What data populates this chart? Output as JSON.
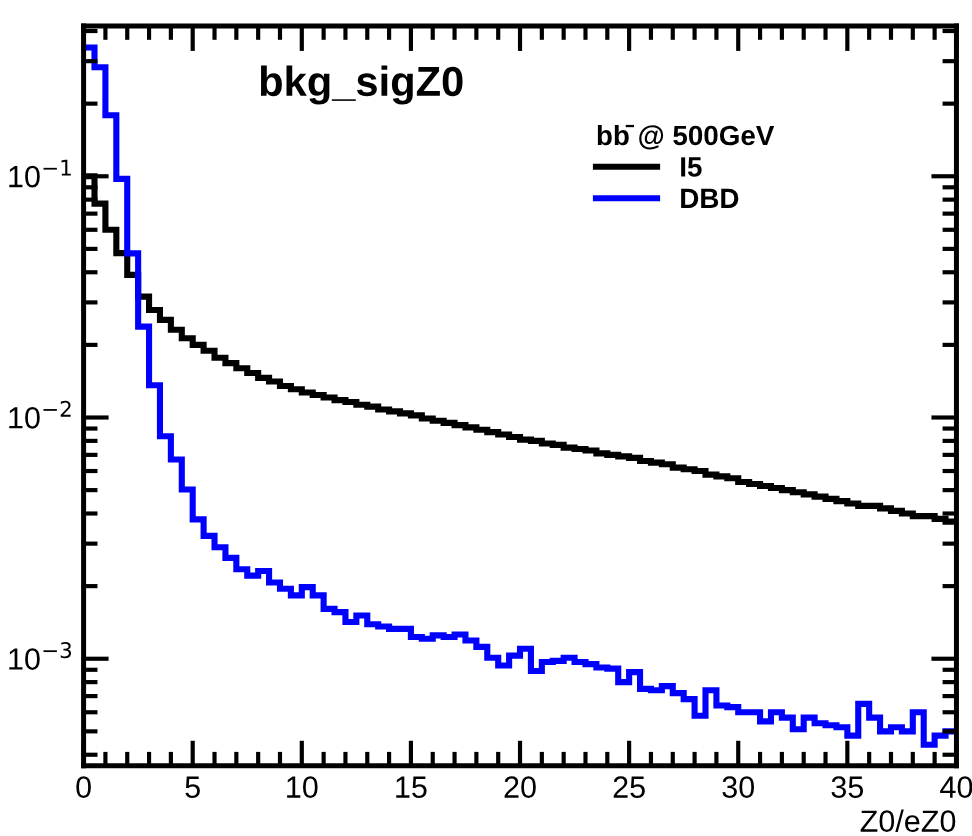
{
  "chart_data": {
    "type": "histogram",
    "title": "bkg_sigZ0",
    "xlabel": "Z0/eZ0",
    "legend_title": "bb̄ @ 500GeV",
    "legend": "top right",
    "log": "y",
    "grid": false,
    "bins": [
      0,
      0.5,
      1,
      1.5,
      2,
      2.5,
      3,
      3.5,
      4,
      4.5,
      5,
      5.5,
      6,
      6.5,
      7,
      7.5,
      8,
      8.5,
      9,
      9.5,
      10,
      10.5,
      11,
      11.5,
      12,
      12.5,
      13,
      13.5,
      14,
      14.5,
      15,
      15.5,
      16,
      16.5,
      17,
      17.5,
      18,
      18.5,
      19,
      19.5,
      20,
      20.5,
      21,
      21.5,
      22,
      22.5,
      23,
      23.5,
      24,
      24.5,
      25,
      25.5,
      26,
      26.5,
      27,
      27.5,
      28,
      28.5,
      29,
      29.5,
      30,
      30.5,
      31,
      31.5,
      32,
      32.5,
      33,
      33.5,
      34,
      34.5,
      35,
      35.5,
      36,
      36.5,
      37,
      37.5,
      38,
      38.5,
      39,
      39.5,
      40
    ],
    "xlim": [
      0,
      40
    ],
    "xticks": [
      0,
      5,
      10,
      15,
      20,
      25,
      30,
      35,
      40
    ],
    "ylim": [
      0.00036,
      0.42
    ],
    "yticks": [
      {
        "value": 0.001,
        "label": "10$^{−3}$"
      },
      {
        "value": 0.01,
        "label": "10$^{−2}$"
      },
      {
        "value": 0.1,
        "label": "10$^{−1}$"
      }
    ],
    "series": [
      {
        "name": "I5",
        "color": "#000000",
        "values": [
          0.1,
          0.077,
          0.06,
          0.048,
          0.039,
          0.0317,
          0.0279,
          0.0254,
          0.0231,
          0.0213,
          0.02,
          0.0189,
          0.0177,
          0.0168,
          0.016,
          0.0153,
          0.0146,
          0.0141,
          0.0135,
          0.0131,
          0.0127,
          0.0124,
          0.0121,
          0.0118,
          0.0116,
          0.0113,
          0.0111,
          0.0108,
          0.0106,
          0.0104,
          0.0102,
          0.0099,
          0.0097,
          0.0095,
          0.0093,
          0.0091,
          0.0089,
          0.0087,
          0.0085,
          0.0083,
          0.0081,
          0.008,
          0.0078,
          0.0077,
          0.0075,
          0.0074,
          0.0073,
          0.0071,
          0.007,
          0.0069,
          0.0068,
          0.0066,
          0.0065,
          0.0064,
          0.0062,
          0.0061,
          0.006,
          0.0058,
          0.0057,
          0.0056,
          0.0054,
          0.0053,
          0.0052,
          0.0051,
          0.005,
          0.0049,
          0.0048,
          0.0047,
          0.0046,
          0.0045,
          0.0044,
          0.0043,
          0.0043,
          0.0042,
          0.0041,
          0.004,
          0.0039,
          0.0039,
          0.0038,
          0.0037
        ]
      },
      {
        "name": "DBD",
        "color": "#0000ff",
        "values": [
          0.342,
          0.283,
          0.179,
          0.0975,
          0.0479,
          0.0238,
          0.0136,
          0.00836,
          0.0067,
          0.00503,
          0.00378,
          0.00323,
          0.0029,
          0.00262,
          0.00235,
          0.00221,
          0.00231,
          0.00207,
          0.00195,
          0.00183,
          0.00198,
          0.00183,
          0.00161,
          0.00156,
          0.00142,
          0.00151,
          0.00139,
          0.00136,
          0.00133,
          0.00133,
          0.00123,
          0.00121,
          0.00125,
          0.00123,
          0.00126,
          0.00119,
          0.00112,
          0.00101,
          0.000938,
          0.00103,
          0.0011,
          0.00089,
          0.00097,
          0.00098,
          0.00101,
          0.00097,
          0.00095,
          0.00092,
          0.00091,
          0.0008,
          0.00088,
          0.00075,
          0.00074,
          0.00077,
          0.00072,
          0.00068,
          0.00058,
          0.00074,
          0.00064,
          0.00063,
          0.0006,
          0.0006,
          0.00055,
          0.0006,
          0.00057,
          0.00051,
          0.00057,
          0.00054,
          0.00053,
          0.00052,
          0.00048,
          0.00065,
          0.00057,
          0.0005,
          0.00052,
          0.0005,
          0.0006,
          0.00044,
          0.00048,
          0.0005
        ]
      }
    ]
  }
}
